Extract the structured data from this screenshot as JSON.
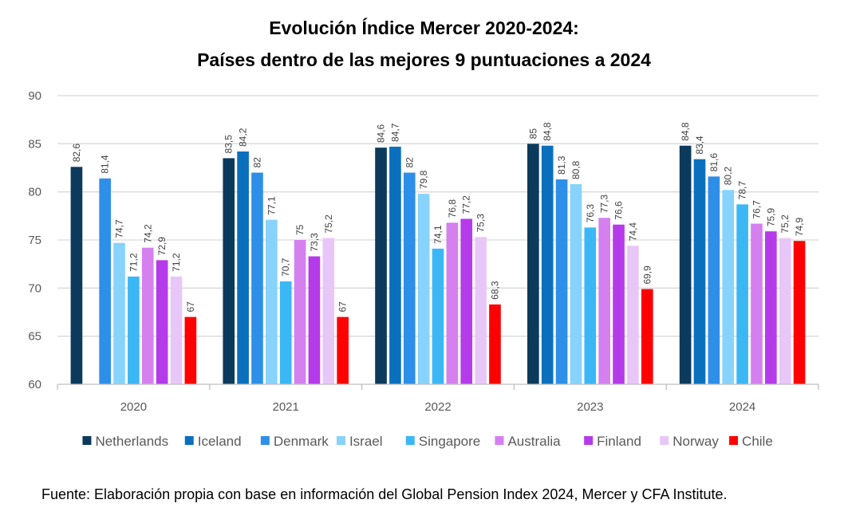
{
  "title_line1": "Evolución Índice Mercer 2020-2024:",
  "title_line2": "Países dentro de las mejores 9 puntuaciones a 2024",
  "source": "Fuente: Elaboración propia con base en información del Global Pension Index 2024, Mercer y CFA Institute.",
  "chart_data": {
    "type": "bar",
    "categories": [
      "2020",
      "2021",
      "2022",
      "2023",
      "2024"
    ],
    "ylim": [
      60,
      90
    ],
    "yticks": [
      60,
      65,
      70,
      75,
      80,
      85,
      90
    ],
    "grid": true,
    "legend_position": "bottom",
    "series": [
      {
        "name": "Netherlands",
        "color": "#0b3a5c",
        "values": [
          82.6,
          83.5,
          84.6,
          85,
          84.8
        ],
        "labels": [
          "82,6",
          "83,5",
          "84,6",
          "85",
          "84,8"
        ]
      },
      {
        "name": "Iceland",
        "color": "#0a70bd",
        "values": [
          null,
          84.2,
          84.7,
          84.8,
          83.4
        ],
        "labels": [
          "",
          "84,2",
          "84,7",
          "84,8",
          "83,4"
        ]
      },
      {
        "name": "Denmark",
        "color": "#2e8fe8",
        "values": [
          81.4,
          82,
          82,
          81.3,
          81.6
        ],
        "labels": [
          "81,4",
          "82",
          "82",
          "81,3",
          "81,6"
        ]
      },
      {
        "name": "Israel",
        "color": "#87d3fb",
        "values": [
          74.7,
          77.1,
          79.8,
          80.8,
          80.2
        ],
        "labels": [
          "74,7",
          "77,1",
          "79,8",
          "80,8",
          "80,2"
        ]
      },
      {
        "name": "Singapore",
        "color": "#3bb7f5",
        "values": [
          71.2,
          70.7,
          74.1,
          76.3,
          78.7
        ],
        "labels": [
          "71,2",
          "70,7",
          "74,1",
          "76,3",
          "78,7"
        ]
      },
      {
        "name": "Australia",
        "color": "#d580ef",
        "values": [
          74.2,
          75,
          76.8,
          77.3,
          76.7
        ],
        "labels": [
          "74,2",
          "75",
          "76,8",
          "77,3",
          "76,7"
        ]
      },
      {
        "name": "Finland",
        "color": "#b53bea",
        "values": [
          72.9,
          73.3,
          77.2,
          76.6,
          75.9
        ],
        "labels": [
          "72,9",
          "73,3",
          "77,2",
          "76,6",
          "75,9"
        ]
      },
      {
        "name": "Norway",
        "color": "#e9c6f8",
        "values": [
          71.2,
          75.2,
          75.3,
          74.4,
          75.2
        ],
        "labels": [
          "71,2",
          "75,2",
          "75,3",
          "74,4",
          "75,2"
        ]
      },
      {
        "name": "Chile",
        "color": "#ff0000",
        "values": [
          67,
          67,
          68.3,
          69.9,
          74.9
        ],
        "labels": [
          "67",
          "67",
          "68,3",
          "69,9",
          "74,9"
        ]
      }
    ]
  }
}
